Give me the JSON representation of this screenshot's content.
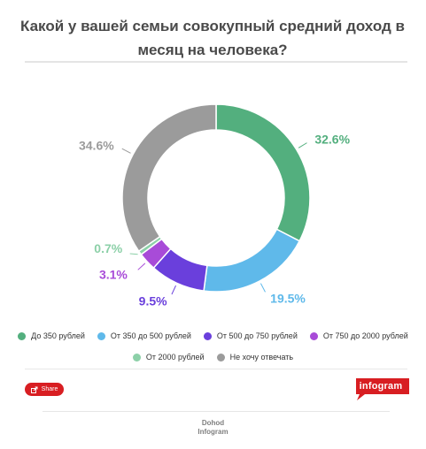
{
  "header": {
    "title_line1": "Какой у вашей семьи совокупный средний доход в",
    "title_line2": "месяц на человека?"
  },
  "chart_data": {
    "type": "pie",
    "variant": "donut",
    "title": "Какой у вашей семьи совокупный средний доход в месяц на человека?",
    "categories": [
      "До 350 рублей",
      "От 350 до 500 рублей",
      "От 500 до 750 рублей",
      "От 750 до 2000 рублей",
      "От 2000 рублей",
      "Не хочу отвечать"
    ],
    "values": [
      32.6,
      19.5,
      9.5,
      3.1,
      0.7,
      34.6
    ],
    "value_labels": [
      "32.6%",
      "19.5%",
      "9.5%",
      "3.1%",
      "0.7%",
      "34.6%"
    ],
    "colors": [
      "#53af7e",
      "#5fb9ea",
      "#6a3fdc",
      "#a84bd8",
      "#8cd0a8",
      "#9b9b9b"
    ],
    "legend_position": "bottom",
    "start_angle": "top",
    "direction": "clockwise"
  },
  "legend": {
    "row1": [
      "До 350 рублей",
      "От 350 до 500 рублей",
      "От 500 до 750 рублей",
      "От 750 до 2000 рублей"
    ],
    "row2": [
      "От 2000 рублей",
      "Не хочу отвечать"
    ]
  },
  "footer": {
    "share_label": "Share",
    "logo_text": "infogram",
    "link1": "Dohod",
    "link2": "Infogram"
  }
}
